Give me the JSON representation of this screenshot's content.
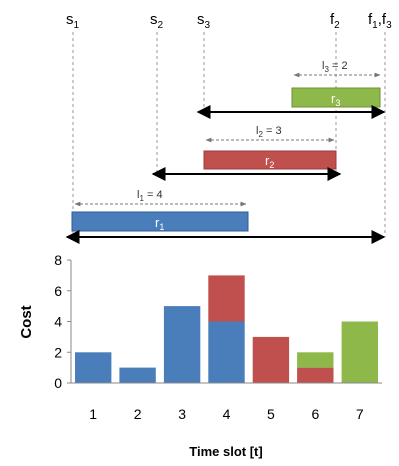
{
  "timeline": {
    "markers": {
      "s1": {
        "base": "s",
        "sub": "1"
      },
      "s2": {
        "base": "s",
        "sub": "2"
      },
      "s3": {
        "base": "s",
        "sub": "3"
      },
      "f2": {
        "base": "f",
        "sub": "2"
      },
      "f1f3": {
        "base1": "f",
        "sub1": "1",
        "comma": ",",
        "base2": "f",
        "sub2": "3"
      }
    },
    "requests": {
      "r1": {
        "base": "r",
        "sub": "1",
        "color": "#4a7ebb"
      },
      "r2": {
        "base": "r",
        "sub": "2",
        "color": "#c0504d"
      },
      "r3": {
        "base": "r",
        "sub": "3",
        "color": "#8fb84a"
      }
    },
    "lengths": {
      "l1": {
        "base": "l",
        "sub": "1",
        "rest": " = 4"
      },
      "l2": {
        "base": "l",
        "sub": "2",
        "rest": " = 3"
      },
      "l3": {
        "base": "l",
        "sub": "3",
        "rest": " = 2"
      }
    },
    "colors": {
      "line": "#000000",
      "dashed": "#888888"
    }
  },
  "chart_data": {
    "type": "bar",
    "stacked": true,
    "categories": [
      "1",
      "2",
      "3",
      "4",
      "5",
      "6",
      "7"
    ],
    "series": [
      {
        "color": "#4a7ebb",
        "values": [
          2,
          1,
          5,
          4,
          0,
          0,
          0
        ]
      },
      {
        "color": "#c0504d",
        "values": [
          0,
          0,
          0,
          3,
          3,
          1,
          0
        ]
      },
      {
        "color": "#8fb84a",
        "values": [
          0,
          0,
          0,
          0,
          0,
          1,
          4
        ]
      }
    ],
    "xlabel": "Time slot [t]",
    "ylabel": "Cost",
    "ylim": [
      0,
      8
    ],
    "yticks": [
      "0",
      "2",
      "4",
      "6",
      "8"
    ],
    "grid": false
  }
}
